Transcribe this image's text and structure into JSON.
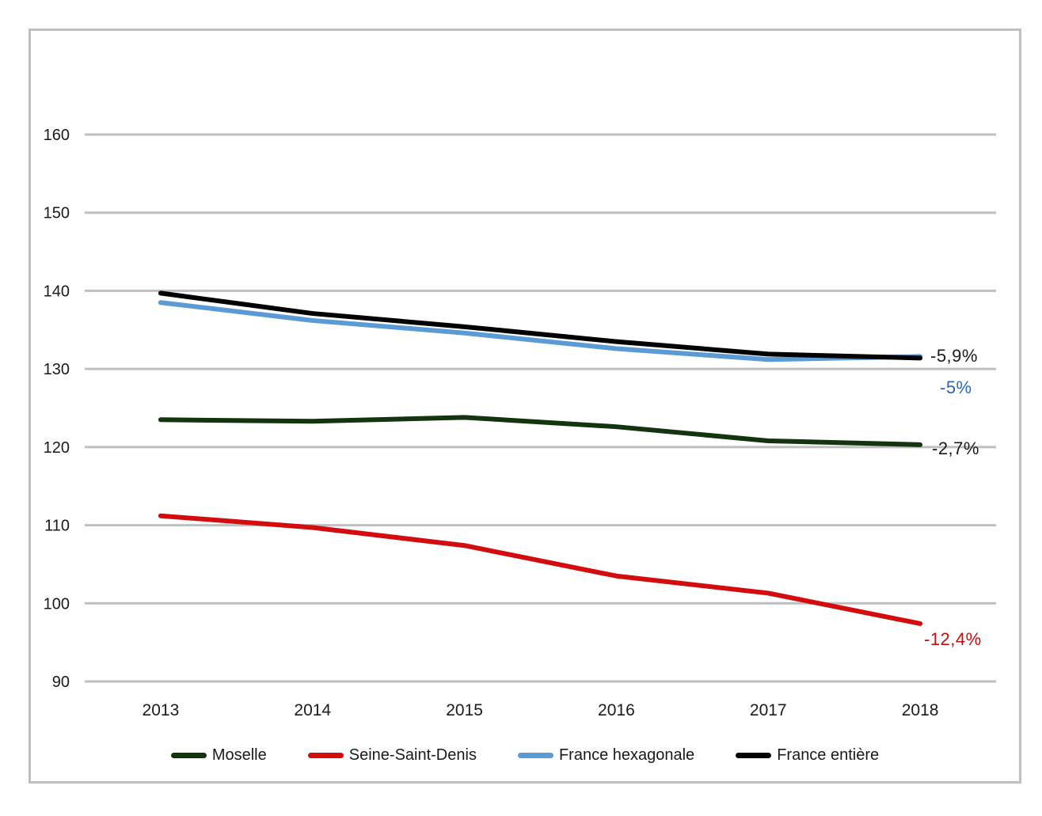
{
  "chart_data": {
    "type": "line",
    "title": "",
    "xlabel": "",
    "ylabel": "",
    "x": [
      "2013",
      "2014",
      "2015",
      "2016",
      "2017",
      "2018"
    ],
    "ylim": [
      90,
      160
    ],
    "yticks": [
      "90",
      "100",
      "110",
      "120",
      "130",
      "140",
      "150",
      "160"
    ],
    "grid": true,
    "grid_color": "#BFBFBF",
    "frame_border_color": "#BFBFBF",
    "legend_position": "bottom",
    "series": [
      {
        "name": "Moselle",
        "color": "#143410",
        "values": [
          123.5,
          123.3,
          123.8,
          122.6,
          120.8,
          120.3
        ]
      },
      {
        "name": "Seine-Saint-Denis",
        "color": "#D30D0D",
        "values": [
          111.2,
          109.7,
          107.4,
          103.5,
          101.3,
          97.4
        ]
      },
      {
        "name": "France hexagonale",
        "color": "#5B9BD5",
        "values": [
          138.5,
          136.2,
          134.6,
          132.6,
          131.2,
          131.6
        ]
      },
      {
        "name": "France entière",
        "color": "#000000",
        "values": [
          139.7,
          137.1,
          135.4,
          133.5,
          131.9,
          131.4
        ]
      }
    ],
    "annotations": [
      {
        "text": "-5,9%",
        "color": "#1a1a1a",
        "refers_to": "France entière"
      },
      {
        "text": "-5%",
        "color": "#2A66B8",
        "refers_to": "France hexagonale"
      },
      {
        "text": "-2,7%",
        "color": "#1a1a1a",
        "refers_to": "Moselle"
      },
      {
        "text": "-12,4%",
        "color": "#C60C0C",
        "refers_to": "Seine-Saint-Denis"
      }
    ]
  }
}
